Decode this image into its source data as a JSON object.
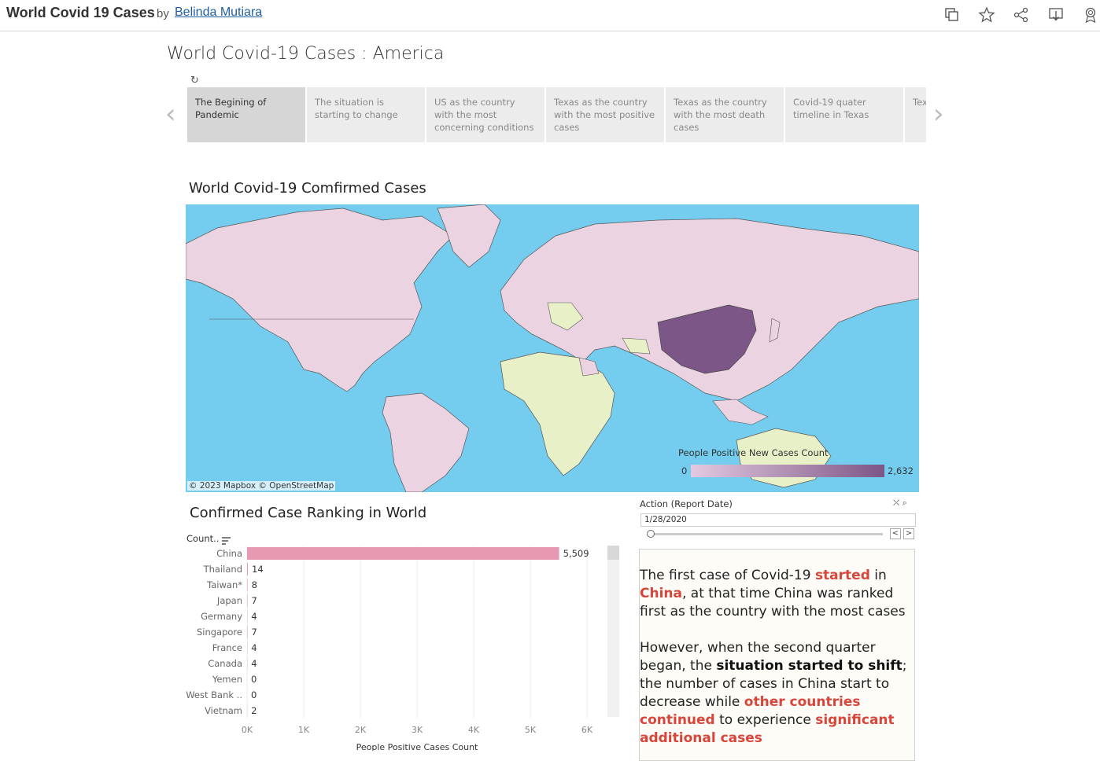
{
  "header": {
    "title": "World Covid 19 Cases",
    "by": "by",
    "author": "Belinda Mutiara"
  },
  "story": {
    "title": "World Covid-19 Cases : America",
    "refresh_icon": "refresh-icon",
    "tabs": [
      {
        "label": "The Begining of Pandemic",
        "active": true
      },
      {
        "label": "The situation is starting to change",
        "active": false
      },
      {
        "label": "US as the country with the most concerning conditions",
        "active": false
      },
      {
        "label": "Texas as the country with the most positive cases",
        "active": false
      },
      {
        "label": "Texas as the country with the most death cases",
        "active": false
      },
      {
        "label": "Covid-19 quater timeline in Texas",
        "active": false
      },
      {
        "label": "Tex",
        "active": false
      }
    ]
  },
  "map": {
    "title": "World Covid-19 Comfirmed Cases",
    "attribution": "© 2023 Mapbox  © OpenStreetMap",
    "legend_title": "People Positive New Cases Count",
    "legend_min": "0",
    "legend_max": "2,632",
    "colors": {
      "ocean": "#74cdee",
      "zero": "#e8f0c8",
      "low": "#ecd3e2",
      "high": "#7c5686"
    }
  },
  "ranking": {
    "title": "Confirmed Case Ranking in World",
    "count_label": "Count..",
    "xlabel": "People Positive Cases Count"
  },
  "chart_data": {
    "type": "bar",
    "orientation": "horizontal",
    "categories": [
      "China",
      "Thailand",
      "Taiwan*",
      "Japan",
      "Germany",
      "Singapore",
      "France",
      "Canada",
      "Yemen",
      "West Bank ..",
      "Vietnam"
    ],
    "values": [
      5509,
      14,
      8,
      7,
      4,
      7,
      4,
      4,
      0,
      0,
      2
    ],
    "value_labels": [
      "5,509",
      "14",
      "8",
      "7",
      "4",
      "7",
      "4",
      "4",
      "0",
      "0",
      "2"
    ],
    "xticks": [
      "0K",
      "1K",
      "2K",
      "3K",
      "4K",
      "5K",
      "6K"
    ],
    "xlim": [
      0,
      6000
    ],
    "title": "Confirmed Case Ranking in World",
    "xlabel": "People Positive Cases Count",
    "bar_color": "#e799b2"
  },
  "filter": {
    "title": "Action (Report Date)",
    "value": "1/28/2020",
    "prev": "<",
    "next": ">"
  },
  "text": {
    "p1": [
      {
        "t": "The first case of Covid-19 ",
        "s": "n"
      },
      {
        "t": "started",
        "s": "hl"
      },
      {
        "t": " in ",
        "s": "n"
      },
      {
        "t": "China",
        "s": "hl"
      },
      {
        "t": ", at that time China was ranked first as the country with the most cases",
        "s": "n"
      }
    ],
    "p2": [
      {
        "t": "However, when the second quarter began, the ",
        "s": "n"
      },
      {
        "t": "situation started to shift",
        "s": "bd"
      },
      {
        "t": "; the number of cases in China start to decrease while ",
        "s": "n"
      },
      {
        "t": "other countries continued",
        "s": "hl"
      },
      {
        "t": " to experience ",
        "s": "n"
      },
      {
        "t": "significant additional cases",
        "s": "hl"
      }
    ]
  }
}
